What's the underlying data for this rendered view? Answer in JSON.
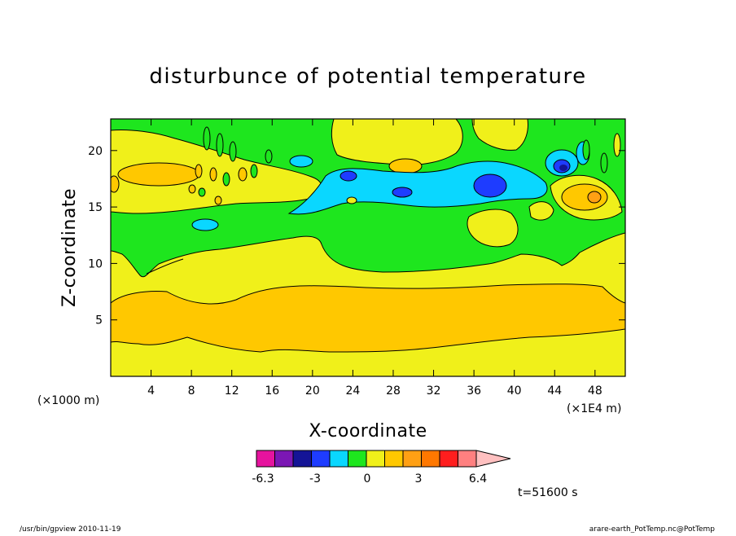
{
  "chart_data": {
    "type": "heatmap",
    "title": "disturbunce of potential temperature",
    "xlabel": "X-coordinate",
    "ylabel": "Z-coordinate",
    "x_unit": "(×1E4 m)",
    "y_unit": "(×1000 m)",
    "xlim": [
      0,
      51
    ],
    "ylim": [
      0,
      22.8
    ],
    "x_ticks": [
      4,
      8,
      12,
      16,
      20,
      24,
      28,
      32,
      36,
      40,
      44,
      48
    ],
    "y_ticks": [
      5,
      10,
      15,
      20
    ],
    "x_tick_labels": [
      "4",
      "8",
      "12",
      "16",
      "20",
      "24",
      "28",
      "32",
      "36",
      "40",
      "44",
      "48"
    ],
    "y_tick_labels": [
      "5",
      "10",
      "15",
      "20"
    ],
    "colorbar": {
      "labels": [
        "-6.3",
        "-3",
        "0",
        "3",
        "6.4"
      ],
      "colors": [
        "#e6139e",
        "#7b17b4",
        "#141496",
        "#1e3cff",
        "#0ad7ff",
        "#1ee61e",
        "#f0f01a",
        "#ffc800",
        "#ffa014",
        "#ff7800",
        "#ff1e1e",
        "#ff8080",
        "#ffc0c0"
      ]
    },
    "time_label": "t=51600 s",
    "regions": [
      {
        "level": "0 to 1.3",
        "color": "#f0f01a",
        "description": "background"
      },
      {
        "level": "1.3 to 2.2",
        "color": "#ffc800",
        "description": "warm band z 2.5-8 km"
      },
      {
        "level": "-1.3 to 0",
        "color": "#1ee61e",
        "description": "upper cool layer z 10-22 km"
      },
      {
        "level": "-3 to -1.3",
        "color": "#0ad7ff",
        "description": "cold tongue x 17-42, z 14-20 km"
      },
      {
        "level": "< -3",
        "color": "#1e3cff",
        "description": "cold cores near x 24, 29, 37, 45"
      }
    ]
  },
  "footer": {
    "left": "/usr/bin/gpview  2010-11-19",
    "right": "arare-earth_PotTemp.nc@PotTemp"
  }
}
